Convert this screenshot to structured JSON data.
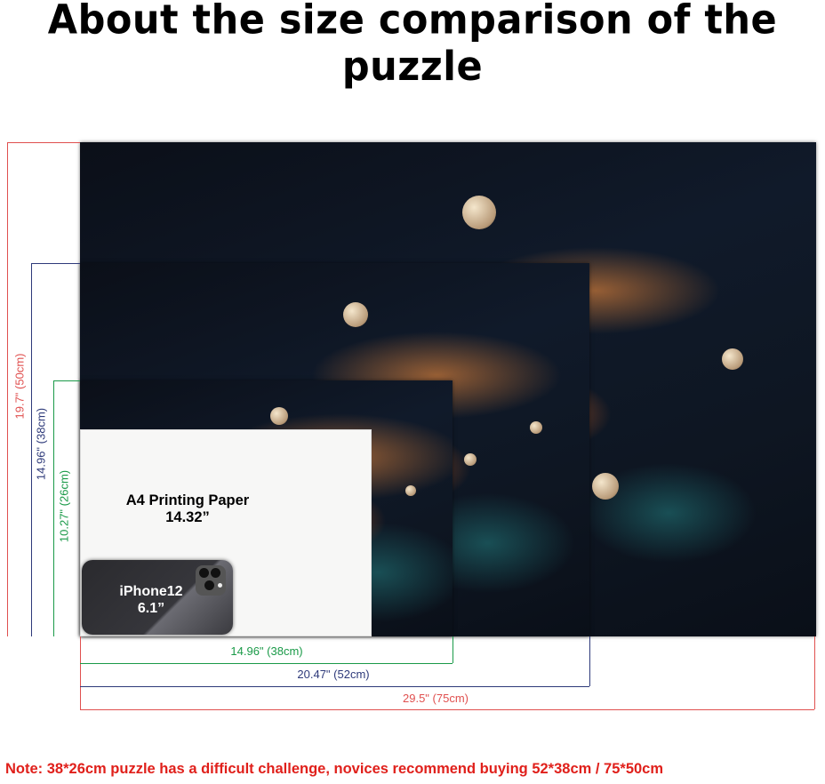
{
  "title": "About the size comparison of the puzzle",
  "puzzles": [
    {
      "width_label": "29.5\" (75cm)",
      "height_label": "19.7\" (50cm)",
      "color": "#e0504f"
    },
    {
      "width_label": "20.47\" (52cm)",
      "height_label": "14.96\" (38cm)",
      "color": "#2e3a7a"
    },
    {
      "width_label": "14.96\" (38cm)",
      "height_label": "10.27\" (26cm)",
      "color": "#1a9a48"
    }
  ],
  "a4": {
    "label": "A4 Printing Paper",
    "size": "14.32”"
  },
  "iphone": {
    "label": "iPhone12",
    "size": "6.1”"
  },
  "note": "Note:  38*26cm puzzle has a difficult challenge, novices recommend buying 52*38cm / 75*50cm"
}
